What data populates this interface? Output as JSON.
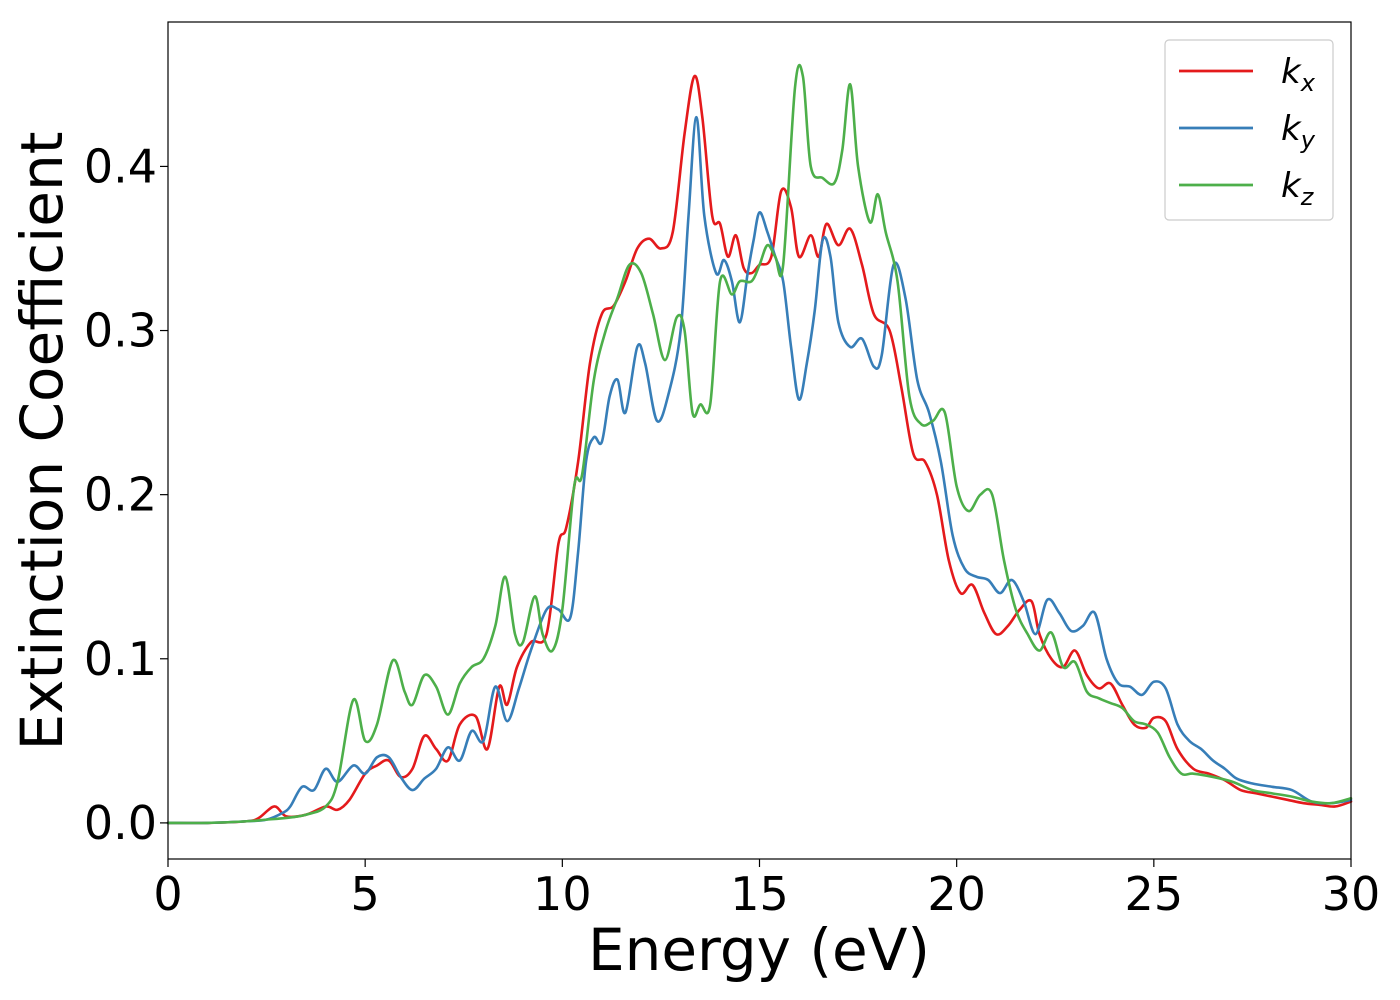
{
  "chart_data": {
    "type": "line",
    "xlabel": "Energy (eV)",
    "ylabel": "Extinction Coefficient",
    "xlim": [
      0,
      30
    ],
    "ylim": [
      -0.022,
      0.488
    ],
    "x_ticks": [
      "0",
      "5",
      "10",
      "15",
      "20",
      "25",
      "30"
    ],
    "y_ticks": [
      "0.0",
      "0.1",
      "0.2",
      "0.3",
      "0.4"
    ],
    "grid": false,
    "legend_position": "top-right",
    "series": [
      {
        "name": "k_x",
        "label_main": "k",
        "label_sub": "x",
        "color": "#e41a1c",
        "x": [
          0,
          1,
          2,
          2.3,
          2.7,
          3.0,
          3.5,
          4.0,
          4.3,
          4.6,
          5.0,
          5.3,
          5.6,
          5.9,
          6.2,
          6.5,
          6.8,
          7.1,
          7.4,
          7.8,
          8.1,
          8.4,
          8.6,
          8.85,
          9.2,
          9.6,
          9.9,
          10.1,
          10.4,
          10.7,
          11.0,
          11.3,
          11.6,
          11.9,
          12.2,
          12.5,
          12.8,
          13.1,
          13.35,
          13.55,
          13.8,
          14.0,
          14.2,
          14.4,
          14.6,
          14.8,
          15.0,
          15.3,
          15.55,
          15.8,
          16.0,
          16.3,
          16.5,
          16.7,
          17.0,
          17.3,
          17.6,
          17.9,
          18.3,
          18.6,
          18.9,
          19.2,
          19.5,
          19.8,
          20.1,
          20.4,
          20.7,
          21.0,
          21.3,
          21.6,
          21.9,
          22.1,
          22.4,
          22.7,
          23.0,
          23.3,
          23.6,
          23.9,
          24.2,
          24.5,
          24.8,
          25.0,
          25.3,
          25.6,
          26.0,
          26.4,
          26.8,
          27.2,
          27.6,
          28.0,
          28.4,
          28.8,
          29.2,
          29.6,
          30.0
        ],
        "y": [
          0,
          0,
          0.001,
          0.003,
          0.01,
          0.004,
          0.005,
          0.01,
          0.008,
          0.014,
          0.03,
          0.035,
          0.038,
          0.028,
          0.033,
          0.053,
          0.045,
          0.038,
          0.06,
          0.065,
          0.045,
          0.083,
          0.072,
          0.095,
          0.11,
          0.115,
          0.17,
          0.18,
          0.22,
          0.28,
          0.31,
          0.315,
          0.33,
          0.35,
          0.356,
          0.35,
          0.36,
          0.42,
          0.455,
          0.43,
          0.37,
          0.365,
          0.345,
          0.358,
          0.338,
          0.335,
          0.34,
          0.345,
          0.385,
          0.375,
          0.345,
          0.358,
          0.345,
          0.365,
          0.352,
          0.362,
          0.34,
          0.31,
          0.3,
          0.265,
          0.225,
          0.22,
          0.2,
          0.16,
          0.14,
          0.145,
          0.128,
          0.115,
          0.12,
          0.13,
          0.135,
          0.115,
          0.1,
          0.095,
          0.105,
          0.09,
          0.082,
          0.085,
          0.072,
          0.06,
          0.058,
          0.064,
          0.062,
          0.045,
          0.033,
          0.03,
          0.026,
          0.02,
          0.018,
          0.016,
          0.014,
          0.012,
          0.011,
          0.01,
          0.013
        ]
      },
      {
        "name": "k_y",
        "label_main": "k",
        "label_sub": "y",
        "color": "#377eb8",
        "x": [
          0,
          1,
          2,
          2.5,
          2.9,
          3.1,
          3.4,
          3.7,
          4.0,
          4.3,
          4.7,
          5.0,
          5.3,
          5.6,
          5.9,
          6.2,
          6.5,
          6.8,
          7.1,
          7.4,
          7.7,
          8.0,
          8.3,
          8.6,
          8.9,
          9.2,
          9.6,
          9.9,
          10.2,
          10.4,
          10.6,
          10.8,
          11.0,
          11.2,
          11.4,
          11.6,
          11.9,
          12.1,
          12.4,
          12.7,
          13.0,
          13.2,
          13.4,
          13.6,
          13.9,
          14.1,
          14.3,
          14.5,
          14.7,
          14.85,
          15.0,
          15.2,
          15.4,
          15.6,
          15.8,
          16.0,
          16.2,
          16.4,
          16.6,
          16.8,
          17.0,
          17.3,
          17.6,
          17.9,
          18.1,
          18.4,
          18.7,
          19.0,
          19.3,
          19.6,
          19.9,
          20.2,
          20.5,
          20.8,
          21.1,
          21.4,
          21.7,
          22.0,
          22.3,
          22.6,
          22.9,
          23.2,
          23.5,
          23.8,
          24.1,
          24.4,
          24.7,
          25.0,
          25.3,
          25.6,
          25.9,
          26.2,
          26.5,
          26.8,
          27.1,
          27.5,
          28.0,
          28.5,
          29.0,
          29.5,
          30.0
        ],
        "y": [
          0,
          0,
          0.001,
          0.002,
          0.006,
          0.01,
          0.022,
          0.02,
          0.033,
          0.025,
          0.035,
          0.03,
          0.04,
          0.04,
          0.028,
          0.02,
          0.027,
          0.033,
          0.046,
          0.038,
          0.056,
          0.05,
          0.083,
          0.062,
          0.082,
          0.105,
          0.13,
          0.13,
          0.125,
          0.165,
          0.22,
          0.235,
          0.232,
          0.26,
          0.27,
          0.25,
          0.29,
          0.28,
          0.245,
          0.262,
          0.3,
          0.37,
          0.43,
          0.37,
          0.335,
          0.343,
          0.33,
          0.305,
          0.335,
          0.355,
          0.372,
          0.36,
          0.345,
          0.33,
          0.29,
          0.258,
          0.28,
          0.312,
          0.355,
          0.345,
          0.305,
          0.29,
          0.295,
          0.278,
          0.285,
          0.34,
          0.32,
          0.27,
          0.25,
          0.22,
          0.175,
          0.155,
          0.15,
          0.148,
          0.14,
          0.148,
          0.135,
          0.115,
          0.136,
          0.128,
          0.117,
          0.12,
          0.128,
          0.1,
          0.085,
          0.083,
          0.078,
          0.086,
          0.082,
          0.06,
          0.05,
          0.045,
          0.038,
          0.033,
          0.027,
          0.024,
          0.022,
          0.02,
          0.013,
          0.012,
          0.014
        ]
      },
      {
        "name": "k_z",
        "label_main": "k",
        "label_sub": "z",
        "color": "#4daf4a",
        "x": [
          0,
          1,
          2,
          2.5,
          3.0,
          3.5,
          4.0,
          4.3,
          4.7,
          5.0,
          5.3,
          5.7,
          6.0,
          6.2,
          6.5,
          6.8,
          7.1,
          7.4,
          7.7,
          8.0,
          8.3,
          8.55,
          8.8,
          9.0,
          9.3,
          9.5,
          9.75,
          10.0,
          10.3,
          10.5,
          10.8,
          11.1,
          11.4,
          11.7,
          12.0,
          12.3,
          12.6,
          12.9,
          13.1,
          13.3,
          13.5,
          13.75,
          14.0,
          14.3,
          14.5,
          14.8,
          15.0,
          15.2,
          15.4,
          15.6,
          15.9,
          16.1,
          16.3,
          16.6,
          16.9,
          17.1,
          17.3,
          17.5,
          17.8,
          18.0,
          18.2,
          18.5,
          18.8,
          19.1,
          19.4,
          19.7,
          20.0,
          20.3,
          20.6,
          20.9,
          21.2,
          21.5,
          21.8,
          22.1,
          22.4,
          22.7,
          23.0,
          23.3,
          23.6,
          23.9,
          24.2,
          24.5,
          24.8,
          25.1,
          25.4,
          25.7,
          26.0,
          26.5,
          27.0,
          27.5,
          28.0,
          28.5,
          29.0,
          29.5,
          30.0
        ],
        "y": [
          0,
          0,
          0.001,
          0.002,
          0.003,
          0.005,
          0.01,
          0.025,
          0.075,
          0.05,
          0.06,
          0.099,
          0.08,
          0.072,
          0.09,
          0.083,
          0.066,
          0.085,
          0.095,
          0.1,
          0.12,
          0.15,
          0.115,
          0.11,
          0.138,
          0.115,
          0.105,
          0.13,
          0.205,
          0.212,
          0.27,
          0.3,
          0.32,
          0.34,
          0.335,
          0.31,
          0.282,
          0.308,
          0.3,
          0.25,
          0.255,
          0.255,
          0.33,
          0.322,
          0.33,
          0.33,
          0.34,
          0.352,
          0.345,
          0.34,
          0.448,
          0.455,
          0.4,
          0.393,
          0.39,
          0.41,
          0.45,
          0.4,
          0.366,
          0.383,
          0.36,
          0.33,
          0.26,
          0.243,
          0.245,
          0.25,
          0.205,
          0.19,
          0.2,
          0.2,
          0.16,
          0.13,
          0.115,
          0.105,
          0.116,
          0.095,
          0.098,
          0.08,
          0.076,
          0.073,
          0.07,
          0.062,
          0.06,
          0.055,
          0.04,
          0.03,
          0.03,
          0.028,
          0.025,
          0.02,
          0.018,
          0.016,
          0.013,
          0.012,
          0.015
        ]
      }
    ]
  }
}
